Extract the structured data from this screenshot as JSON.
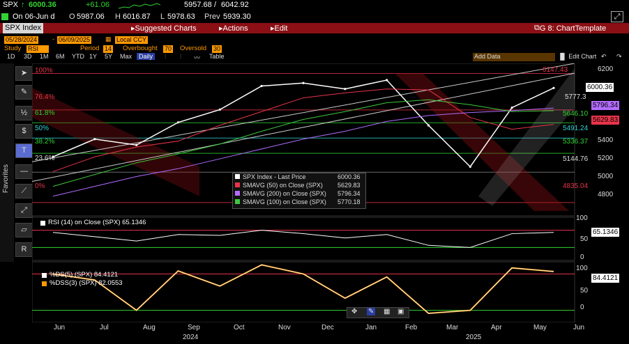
{
  "quote": {
    "ticker": "SPX",
    "arrow": "↑",
    "last": "6000.36",
    "change": "+61.06",
    "range_lo": "5957.68",
    "range_sep": "/",
    "range_hi": "6042.92",
    "open_line": "On 06-Jun d",
    "open_prefix": "O",
    "open": "5987.06",
    "high_prefix": "H",
    "high": "6016.87",
    "low_prefix": "L",
    "low": "5978.63",
    "prev_prefix": "Prev",
    "prev": "5939.30"
  },
  "menu": {
    "security": "SPX Index",
    "suggested": "Suggested Charts",
    "actions": "Actions",
    "edit": "Edit",
    "template": "G 8: ChartTemplate"
  },
  "params": {
    "start_date": "05/28/2024",
    "end_date": "06/09/2025",
    "currency": "Local CCY",
    "study_label": "Study",
    "study": "RSI",
    "period_label": "Period",
    "period": "14",
    "overbought_label": "Overbought",
    "overbought": "70",
    "oversold_label": "Oversold",
    "oversold": "30",
    "add_data": "Add Data",
    "edit_chart": "Edit Chart"
  },
  "toolbar": {
    "ranges": [
      "1D",
      "3D",
      "1M",
      "6M",
      "YTD",
      "1Y",
      "5Y",
      "Max"
    ],
    "daily": "Daily",
    "table": "Table"
  },
  "side": {
    "favorites": "Favorites"
  },
  "price_axis": [
    "6200",
    "6000",
    "5800",
    "5600",
    "5400",
    "5200",
    "5000",
    "4800"
  ],
  "rsi_axis": [
    "100",
    "50",
    "0"
  ],
  "stoch_axis": [
    "100",
    "50",
    "0"
  ],
  "tags": {
    "t6147": "6147.43",
    "last": "6000.36",
    "t5777": "5777.3",
    "sma200": "5796.34",
    "t5646": "5646.10",
    "sma50": "5629.83",
    "t5491": "5491.24",
    "t5336": "5336.37",
    "t5144": "5144.76",
    "t4835": "4835.04",
    "rsi": "65.1346",
    "stoch": "84.4121"
  },
  "fib": [
    "100%",
    "76.4%",
    "61.8%",
    "50%",
    "38.2%",
    "23.6%",
    "0%"
  ],
  "legend": [
    {
      "label": "SPX Index - Last Price",
      "value": "6000.36",
      "color": "#ffffff"
    },
    {
      "label": "SMAVG (50)  on Close (SPX)",
      "value": "5629.83",
      "color": "#e8344a"
    },
    {
      "label": "SMAVG (200)  on Close (SPX)",
      "value": "5796.34",
      "color": "#b46cff"
    },
    {
      "label": "SMAVG (100)  on Close (SPX)",
      "value": "5770.18",
      "color": "#3ec83e"
    }
  ],
  "rsi_label": "RSI (14)  on Close (SPX)  65.1346",
  "stoch_legend": [
    {
      "label": "%DS(5) (SPX)  84.4121",
      "color": "#ffffff"
    },
    {
      "label": "%DSS(3) (SPX)  82.0553",
      "color": "#ff9a00"
    }
  ],
  "x_months": [
    "Jun",
    "Jul",
    "Aug",
    "Sep",
    "Oct",
    "Nov",
    "Dec",
    "Jan",
    "Feb",
    "Mar",
    "Apr",
    "May",
    "Jun"
  ],
  "x_years": [
    "2024",
    "2025"
  ],
  "chart_data": {
    "type": "line",
    "title": "SPX Index",
    "ylim": [
      4700,
      6250
    ],
    "x": [
      "2024-06",
      "2024-07",
      "2024-08",
      "2024-09",
      "2024-10",
      "2024-11",
      "2024-12",
      "2025-01",
      "2025-02",
      "2025-03",
      "2025-04",
      "2025-05",
      "2025-06"
    ],
    "series": [
      {
        "name": "SPX Index - Last Price",
        "values": [
          5300,
          5480,
          5420,
          5650,
          5780,
          6020,
          6050,
          5990,
          6080,
          5620,
          5200,
          5800,
          6000
        ]
      },
      {
        "name": "SMAVG (50)  on Close (SPX)",
        "values": [
          5150,
          5300,
          5400,
          5460,
          5620,
          5760,
          5900,
          5950,
          5990,
          5980,
          5700,
          5580,
          5630
        ]
      },
      {
        "name": "SMAVG (200)  on Close (SPX)",
        "values": [
          4900,
          5000,
          5100,
          5180,
          5280,
          5380,
          5480,
          5560,
          5660,
          5720,
          5750,
          5770,
          5796
        ]
      },
      {
        "name": "SMAVG (100)  on Close (SPX)",
        "values": [
          5000,
          5120,
          5240,
          5330,
          5430,
          5560,
          5680,
          5760,
          5850,
          5880,
          5830,
          5760,
          5770
        ]
      }
    ],
    "rsi": {
      "values": [
        65,
        55,
        45,
        60,
        58,
        70,
        62,
        52,
        60,
        35,
        30,
        62,
        65
      ],
      "ylim": [
        0,
        100
      ],
      "overbought": 70,
      "oversold": 30
    },
    "stoch": {
      "values": [
        80,
        70,
        20,
        85,
        60,
        95,
        80,
        40,
        75,
        15,
        20,
        90,
        84
      ],
      "ylim": [
        0,
        100
      ]
    }
  }
}
